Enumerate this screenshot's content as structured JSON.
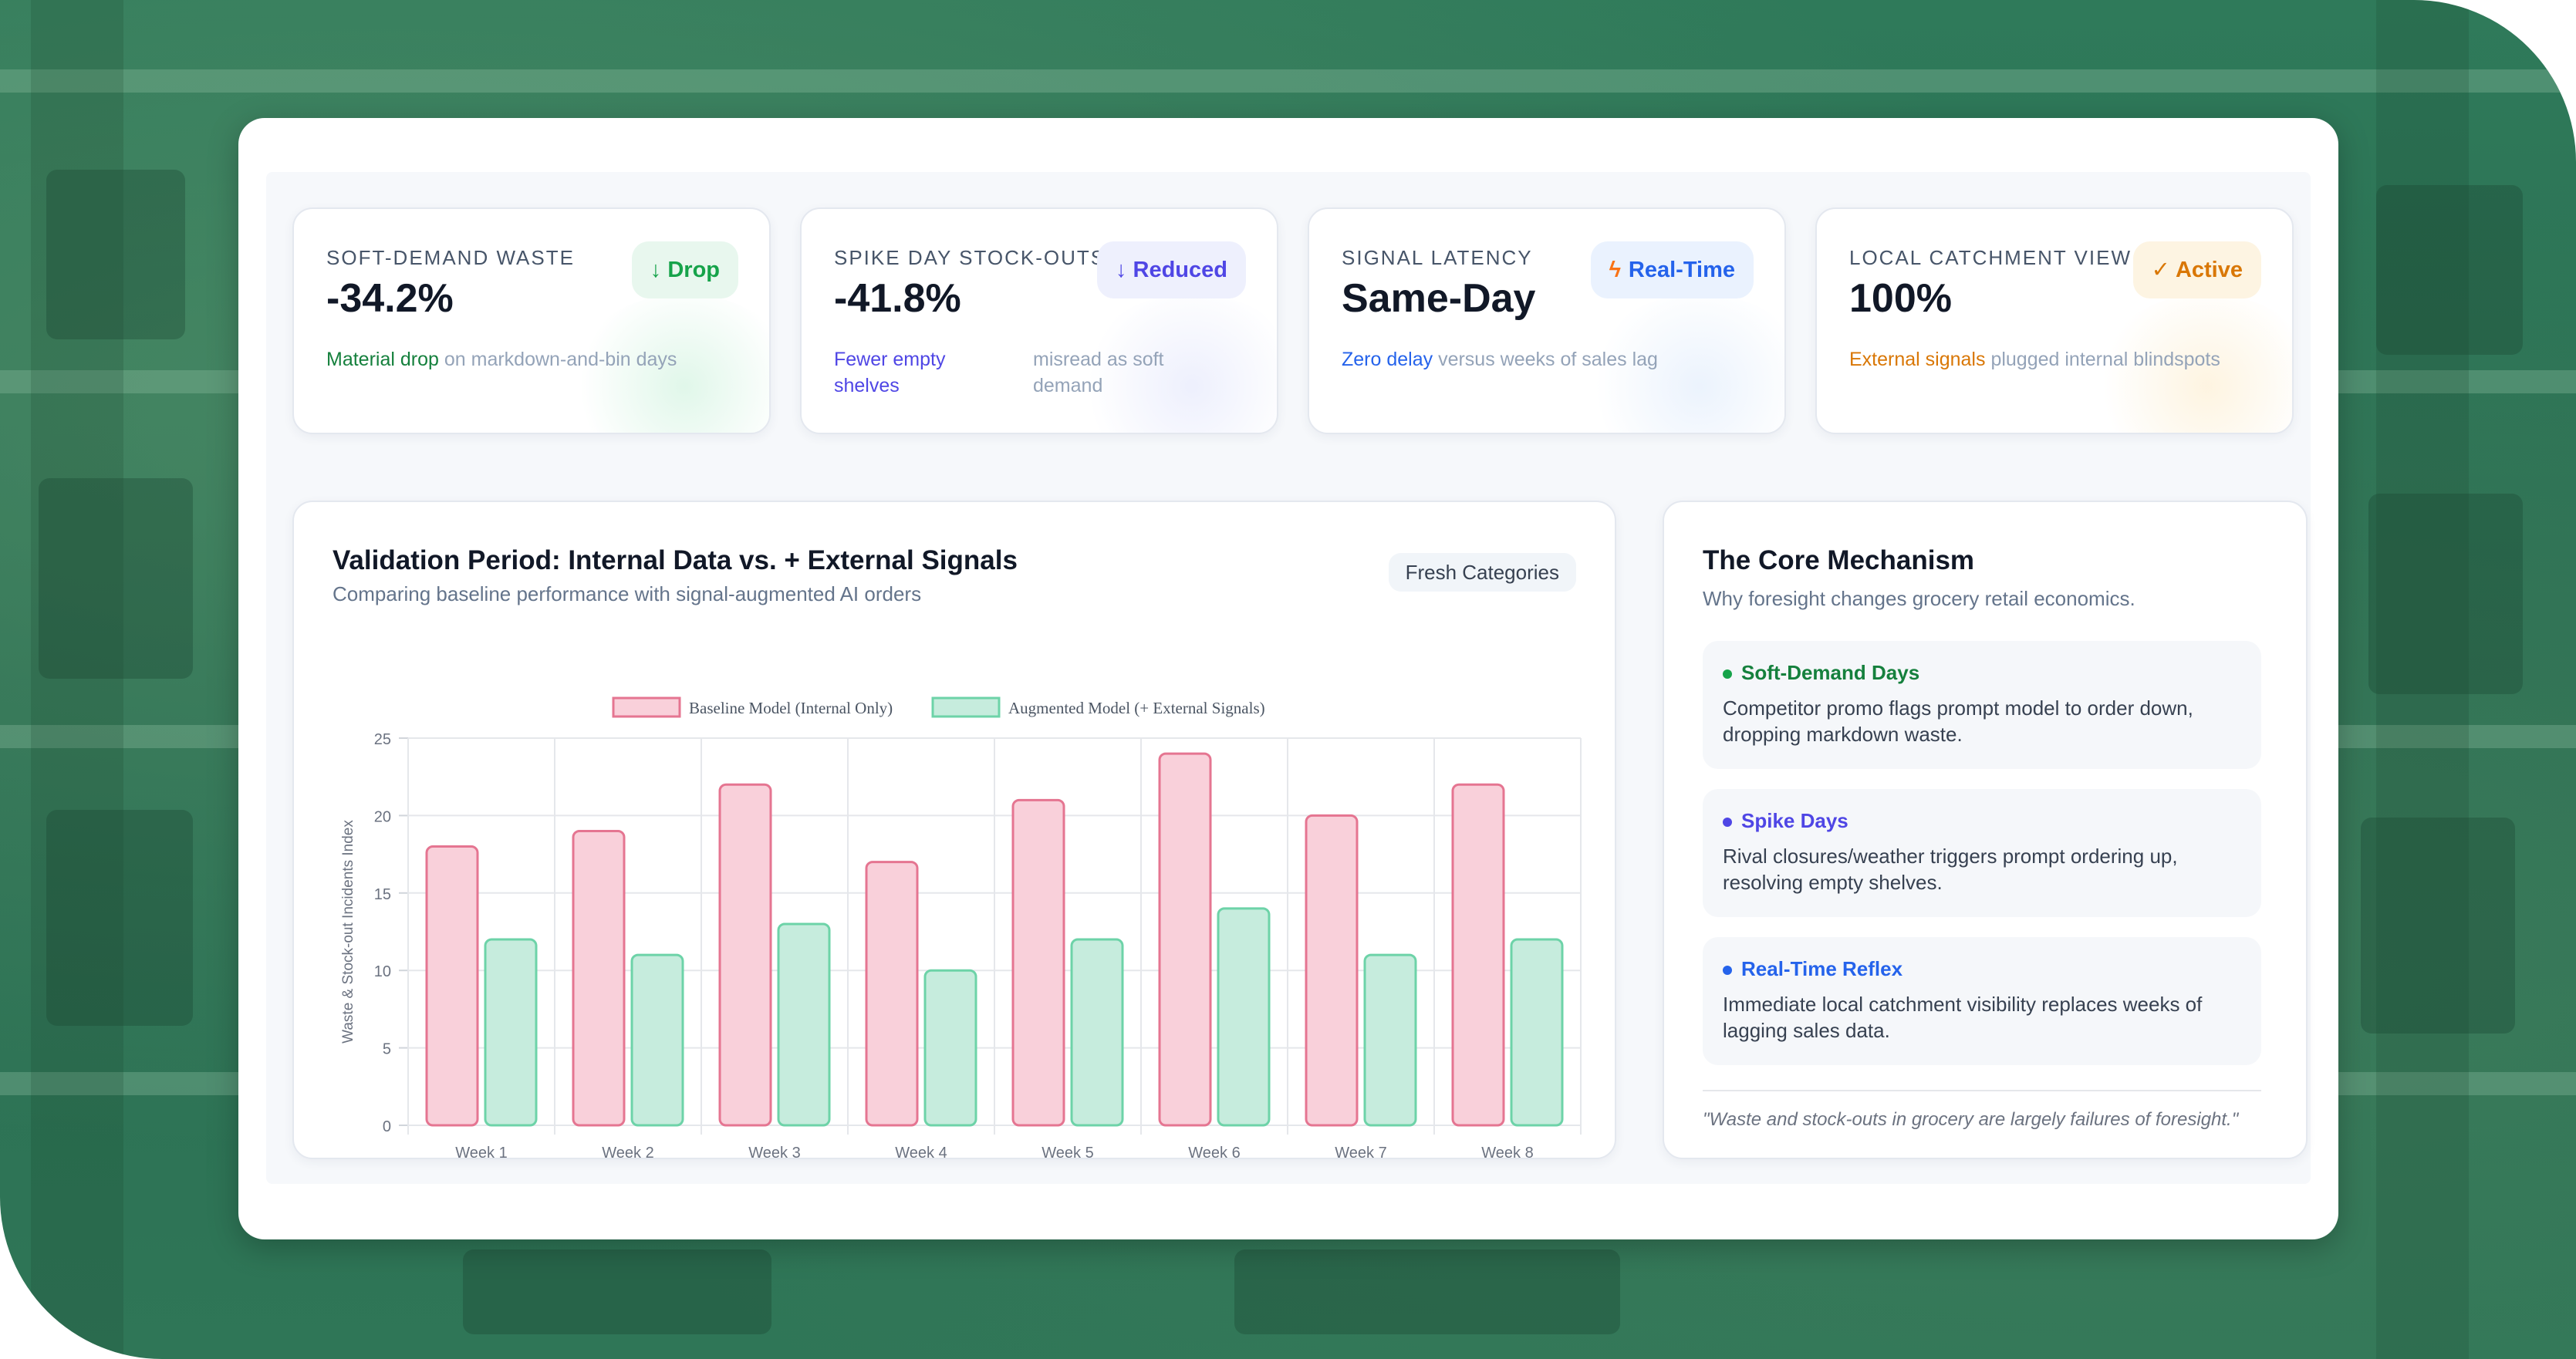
{
  "colors": {
    "backdrop": "#2f7a5a",
    "green": "#16a34a",
    "indigo": "#4f46e5",
    "blue": "#2563eb",
    "amber": "#d97706",
    "baseline_fill": "#f9d0da",
    "baseline_stroke": "#e57591",
    "augmented_fill": "#c6ecdd",
    "augmented_stroke": "#6dd3a8"
  },
  "kpis": [
    {
      "label": "SOFT-DEMAND WASTE",
      "value": "-34.2%",
      "badge": "↓ Drop",
      "highlight": "Material drop",
      "note": "on markdown-and-bin days"
    },
    {
      "label": "SPIKE DAY STOCK-OUTS",
      "value": "-41.8%",
      "badge": "↓ Reduced",
      "highlight": "Fewer empty shelves",
      "note": "misread as soft demand"
    },
    {
      "label": "SIGNAL LATENCY",
      "value": "Same-Day",
      "badge_icon": "lightning-icon",
      "badge": "Real-Time",
      "highlight": "Zero delay",
      "note": "versus weeks of sales lag"
    },
    {
      "label": "LOCAL CATCHMENT VIEW",
      "value": "100%",
      "badge": "✓ Active",
      "highlight": "External signals",
      "note": "plugged internal blindspots"
    }
  ],
  "chart_section": {
    "title": "Validation Period: Internal Data vs. + External Signals",
    "subtitle": "Comparing baseline performance with signal-augmented AI orders",
    "chip": "Fresh Categories"
  },
  "chart_data": {
    "type": "bar",
    "categories": [
      "Week 1",
      "Week 2",
      "Week 3",
      "Week 4",
      "Week 5",
      "Week 6",
      "Week 7",
      "Week 8"
    ],
    "series": [
      {
        "name": "Baseline Model (Internal Only)",
        "values": [
          18,
          19,
          22,
          17,
          21,
          24,
          20,
          22
        ]
      },
      {
        "name": "Augmented Model (+ External Signals)",
        "values": [
          12,
          11,
          13,
          10,
          12,
          14,
          11,
          12
        ]
      }
    ],
    "ylabel": "Waste & Stock-out Incidents Index",
    "xlabel": "",
    "ylim": [
      0,
      25
    ],
    "yticks": [
      "0",
      "5",
      "10",
      "15",
      "20",
      "25"
    ],
    "grid": true,
    "legend": "top"
  },
  "mechanism": {
    "title": "The Core Mechanism",
    "subtitle": "Why foresight changes grocery retail economics.",
    "items": [
      {
        "title": "Soft-Demand Days",
        "body": "Competitor promo flags prompt model to order down, dropping markdown waste."
      },
      {
        "title": "Spike Days",
        "body": "Rival closures/weather triggers prompt ordering up, resolving empty shelves."
      },
      {
        "title": "Real-Time Reflex",
        "body": "Immediate local catchment visibility replaces weeks of lagging sales data."
      }
    ],
    "quote": "\"Waste and stock-outs in grocery are largely failures of foresight.\""
  }
}
